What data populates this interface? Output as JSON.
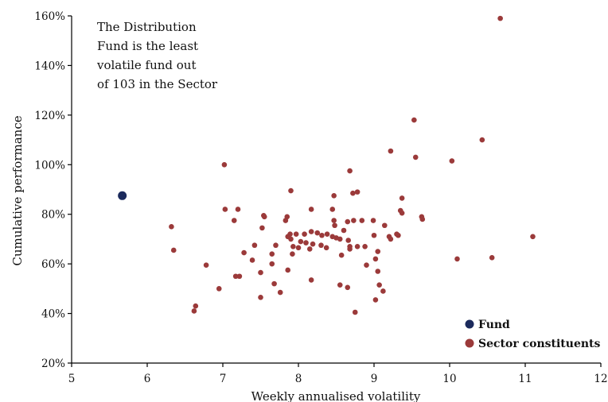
{
  "chart_data": {
    "type": "scatter",
    "xlabel": "Weekly annualised volatility",
    "ylabel": "Cumulative performance",
    "xlim": [
      5,
      12
    ],
    "ylim": [
      20,
      160
    ],
    "x_ticks": [
      "5",
      "6",
      "7",
      "8",
      "9",
      "10",
      "11",
      "12"
    ],
    "y_ticks": [
      "20%",
      "40%",
      "60%",
      "80%",
      "100%",
      "120%",
      "140%",
      "160%"
    ],
    "grid": false,
    "legend_position": "bottom-right",
    "annotation": [
      "The Distribution",
      "Fund is the least",
      "volatile fund out",
      "of 103 in the Sector"
    ],
    "colors": {
      "fund": "#1b2a5c",
      "sector": "#9b3a3a",
      "axis": "#000000"
    },
    "series": [
      {
        "name": "Fund",
        "points": [
          [
            5.67,
            87.5
          ]
        ]
      },
      {
        "name": "Sector constituents",
        "points": [
          [
            10.67,
            159
          ],
          [
            9.53,
            118
          ],
          [
            10.43,
            110
          ],
          [
            9.22,
            105.5
          ],
          [
            9.55,
            103
          ],
          [
            10.03,
            101.5
          ],
          [
            7.02,
            100
          ],
          [
            8.68,
            97.5
          ],
          [
            7.9,
            89.5
          ],
          [
            8.78,
            89
          ],
          [
            8.72,
            88.5
          ],
          [
            8.47,
            87.5
          ],
          [
            9.37,
            86.5
          ],
          [
            7.03,
            82
          ],
          [
            7.2,
            82
          ],
          [
            8.17,
            82
          ],
          [
            8.45,
            82
          ],
          [
            9.35,
            81.5
          ],
          [
            9.37,
            80.5
          ],
          [
            7.54,
            79.5
          ],
          [
            7.55,
            79
          ],
          [
            7.85,
            79
          ],
          [
            9.63,
            79
          ],
          [
            9.64,
            78
          ],
          [
            7.15,
            77.5
          ],
          [
            7.83,
            77.5
          ],
          [
            8.47,
            77.5
          ],
          [
            8.65,
            77
          ],
          [
            8.73,
            77.5
          ],
          [
            8.84,
            77.5
          ],
          [
            8.99,
            77.5
          ],
          [
            6.32,
            75
          ],
          [
            7.52,
            74.5
          ],
          [
            8.48,
            75.5
          ],
          [
            9.14,
            75.5
          ],
          [
            8.6,
            73.5
          ],
          [
            8.17,
            73
          ],
          [
            8.25,
            72.5
          ],
          [
            8.31,
            71.5
          ],
          [
            7.89,
            72
          ],
          [
            7.97,
            72
          ],
          [
            8.08,
            72
          ],
          [
            8.38,
            72
          ],
          [
            8.45,
            71
          ],
          [
            8.5,
            70.5
          ],
          [
            8.55,
            70
          ],
          [
            9.0,
            71.5
          ],
          [
            9.3,
            72
          ],
          [
            9.32,
            71.5
          ],
          [
            9.2,
            71
          ],
          [
            9.22,
            70
          ],
          [
            11.1,
            71
          ],
          [
            7.86,
            71
          ],
          [
            7.9,
            70
          ],
          [
            8.03,
            69
          ],
          [
            8.1,
            68.5
          ],
          [
            8.19,
            68
          ],
          [
            8.3,
            67.5
          ],
          [
            8.37,
            66.5
          ],
          [
            8.66,
            69.5
          ],
          [
            8.68,
            67
          ],
          [
            8.78,
            67
          ],
          [
            8.88,
            67
          ],
          [
            7.42,
            67.5
          ],
          [
            7.7,
            67.5
          ],
          [
            7.93,
            67
          ],
          [
            8.0,
            66.5
          ],
          [
            8.15,
            66
          ],
          [
            9.05,
            65
          ],
          [
            6.35,
            65.5
          ],
          [
            7.28,
            64.5
          ],
          [
            7.65,
            64
          ],
          [
            7.92,
            64
          ],
          [
            8.57,
            63.5
          ],
          [
            8.68,
            66
          ],
          [
            7.39,
            61.5
          ],
          [
            7.65,
            60
          ],
          [
            9.02,
            62
          ],
          [
            10.1,
            62
          ],
          [
            10.56,
            62.5
          ],
          [
            6.78,
            59.5
          ],
          [
            8.9,
            59.5
          ],
          [
            7.86,
            57.5
          ],
          [
            9.05,
            57
          ],
          [
            7.17,
            55
          ],
          [
            7.22,
            55
          ],
          [
            7.5,
            56.5
          ],
          [
            8.17,
            53.5
          ],
          [
            7.68,
            52
          ],
          [
            8.55,
            51.5
          ],
          [
            9.07,
            51.5
          ],
          [
            6.95,
            50
          ],
          [
            8.65,
            50.5
          ],
          [
            9.12,
            49
          ],
          [
            7.76,
            48.5
          ],
          [
            7.5,
            46.5
          ],
          [
            9.02,
            45.5
          ],
          [
            6.64,
            43
          ],
          [
            6.62,
            41
          ],
          [
            8.75,
            40.5
          ]
        ]
      }
    ]
  }
}
